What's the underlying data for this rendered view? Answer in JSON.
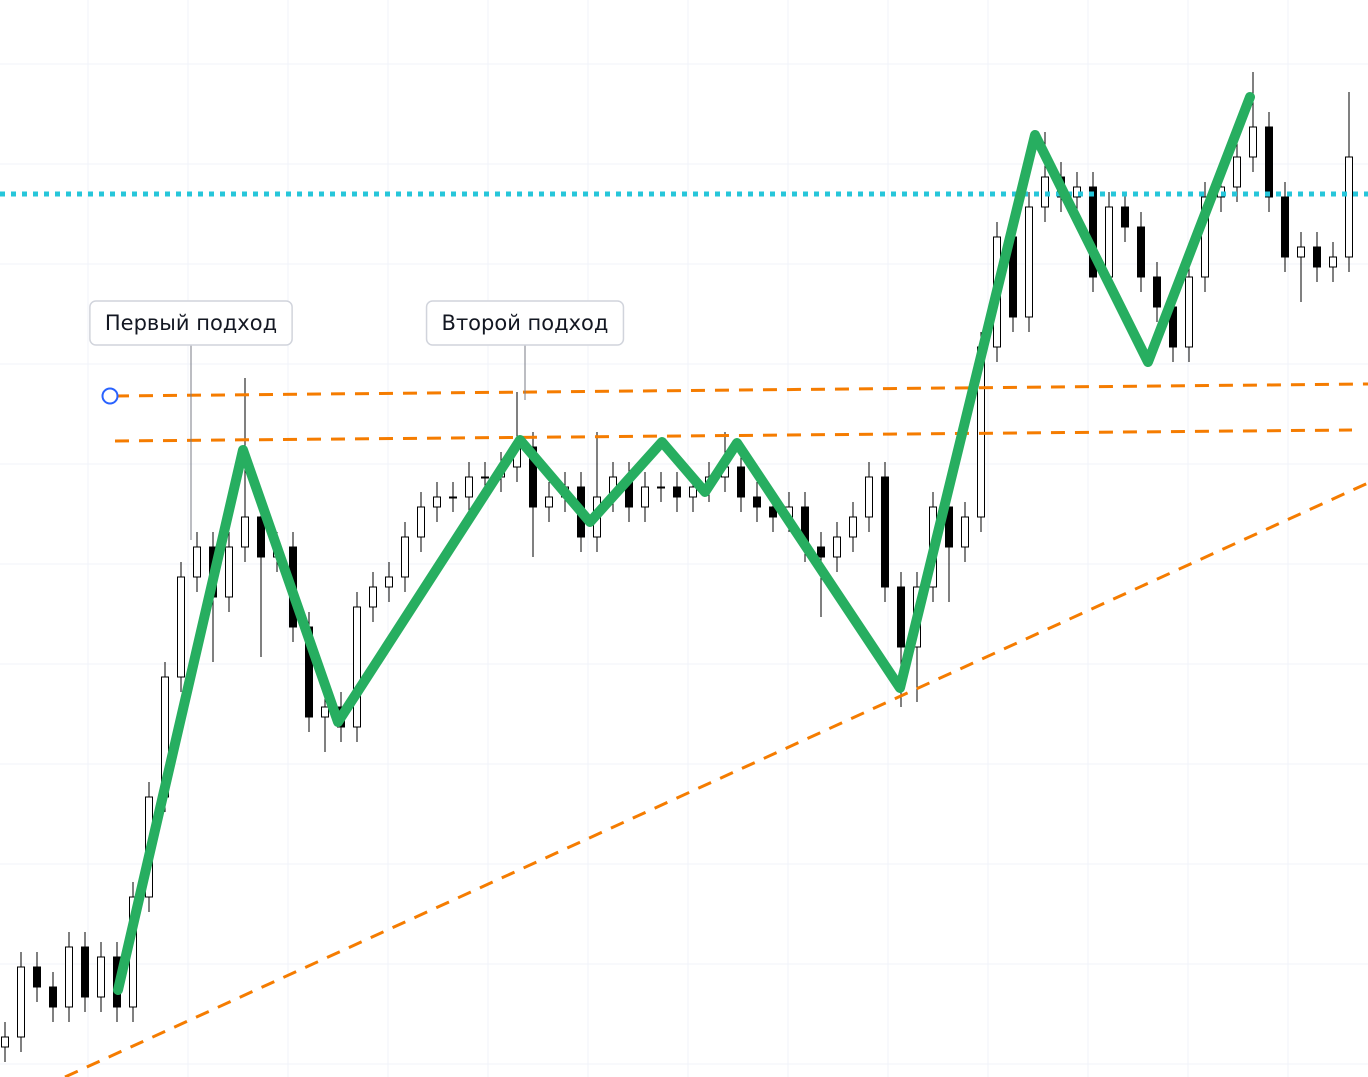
{
  "chart_data": {
    "type": "candlestick",
    "xlim": [
      0,
      136.8
    ],
    "ylim": [
      0,
      107.7
    ],
    "grid": true,
    "xticks": [
      8.8,
      18.8,
      28.8,
      38.8,
      48.8,
      58.8,
      68.8,
      78.8,
      88.8,
      98.8,
      108.8,
      118.8,
      128.8
    ],
    "yticks": [
      1.3,
      11.3,
      21.3,
      31.3,
      41.3,
      51.3,
      61.3,
      71.3,
      81.3,
      91.3,
      101.3
    ],
    "up_color": "#ffffff",
    "down_color": "#000000",
    "x": [
      0.5,
      2.1,
      3.7,
      5.3,
      6.9,
      8.5,
      10.1,
      11.7,
      13.3,
      14.9,
      16.5,
      18.1,
      19.7,
      21.3,
      22.9,
      24.5,
      26.1,
      27.7,
      29.3,
      30.9,
      32.5,
      34.1,
      35.7,
      37.3,
      38.9,
      40.5,
      42.1,
      43.7,
      45.3,
      46.9,
      48.5,
      50.1,
      51.7,
      53.3,
      54.9,
      56.5,
      58.1,
      59.7,
      61.3,
      62.9,
      64.5,
      66.1,
      67.7,
      69.3,
      70.9,
      72.5,
      74.1,
      75.7,
      77.3,
      78.9,
      80.5,
      82.1,
      83.7,
      85.3,
      86.9,
      88.5,
      90.1,
      91.7,
      93.3,
      94.9,
      96.5,
      98.1,
      99.7,
      101.3,
      102.9,
      104.5,
      106.1,
      107.7,
      109.3,
      110.9,
      112.5,
      114.1,
      115.7,
      117.3,
      118.9,
      120.5,
      122.1,
      123.7,
      125.3,
      126.9,
      128.5,
      130.1,
      131.7,
      133.3,
      134.9
    ],
    "open": [
      3,
      4,
      11,
      9,
      7,
      13,
      8,
      12,
      7,
      18,
      28,
      40,
      50,
      53,
      48,
      53,
      56,
      52,
      53,
      45,
      36,
      37,
      35,
      47,
      49,
      50,
      54,
      57,
      58,
      58,
      60,
      60,
      61,
      63,
      57,
      58,
      59,
      54,
      58,
      60,
      57,
      59,
      59,
      58,
      59,
      60,
      61,
      58,
      57,
      56,
      57,
      53,
      52,
      54,
      56,
      60,
      49,
      43,
      49,
      57,
      53,
      56,
      73,
      84,
      76,
      87,
      90,
      88,
      89,
      80,
      87,
      85,
      80,
      77,
      73,
      80,
      88,
      89,
      92,
      95,
      88,
      82,
      83,
      81,
      82
    ],
    "high": [
      5.5,
      12.5,
      12.5,
      10.5,
      14.5,
      14.5,
      13.5,
      13.5,
      19.5,
      29.5,
      41.5,
      51.5,
      54.5,
      54.5,
      54.5,
      69.9,
      57.5,
      54.5,
      54.5,
      46.5,
      38.5,
      38.5,
      48.5,
      50.5,
      51.5,
      55.5,
      58.5,
      59.5,
      59.5,
      61.5,
      61.5,
      62.5,
      68.5,
      64.5,
      59.5,
      60.5,
      60.5,
      64.5,
      61.5,
      61.5,
      60.5,
      60.5,
      60.5,
      60.5,
      61.5,
      64.5,
      62.5,
      59.5,
      58.5,
      58.5,
      58.5,
      54.5,
      55.5,
      57.5,
      61.5,
      61.5,
      50.5,
      50.5,
      58.5,
      58.5,
      57.5,
      74.5,
      85.5,
      85.5,
      88.5,
      94.5,
      91.5,
      90.5,
      90.5,
      88.5,
      88.5,
      86.5,
      81.5,
      78.5,
      81.5,
      89.5,
      90.5,
      93.5,
      100.5,
      96.5,
      89.5,
      84.5,
      84.5,
      83.5,
      98.5
    ],
    "low": [
      1.5,
      2.5,
      7.5,
      5.5,
      5.5,
      6.5,
      6.5,
      5.5,
      5.5,
      16.5,
      26.5,
      38.5,
      48.5,
      41.5,
      46.5,
      51.5,
      42,
      50.5,
      43.5,
      34.5,
      32.5,
      33.5,
      33.5,
      45.5,
      47.5,
      48.5,
      52.5,
      55.5,
      56.5,
      56.5,
      58.5,
      58.5,
      59.5,
      52,
      55.5,
      56.5,
      52.5,
      52.5,
      56.5,
      55.5,
      55.5,
      57.5,
      56.5,
      56.5,
      57.5,
      58.5,
      56.5,
      55.5,
      54.5,
      54.5,
      51.5,
      46,
      50.5,
      52.5,
      54.5,
      47.5,
      37,
      37.5,
      47.5,
      47.5,
      51.5,
      54.5,
      71.5,
      74.5,
      74.5,
      85.5,
      86.5,
      86.5,
      78.5,
      78.5,
      83.5,
      78.5,
      75.5,
      71.5,
      71.5,
      78.5,
      86.5,
      87.5,
      90.5,
      86.5,
      80.5,
      77.5,
      79.5,
      79.5,
      80.5
    ],
    "close": [
      4,
      11,
      9,
      7,
      13,
      8,
      12,
      7,
      18,
      28,
      40,
      50,
      53,
      48,
      53,
      56,
      52,
      53,
      45,
      36,
      37,
      35,
      47,
      49,
      50,
      54,
      57,
      58,
      58,
      60,
      60,
      61,
      63,
      57,
      58,
      59,
      54,
      58,
      60,
      57,
      59,
      59,
      58,
      59,
      60,
      61,
      58,
      57,
      56,
      57,
      53,
      52,
      54,
      56,
      60,
      49,
      43,
      49,
      57,
      53,
      56,
      73,
      84,
      76,
      87,
      90,
      88,
      89,
      80,
      87,
      85,
      80,
      77,
      73,
      80,
      88,
      89,
      92,
      95,
      88,
      82,
      83,
      81,
      82,
      92
    ],
    "zigzag": {
      "color": "#27ae60",
      "x": [
        11.8,
        24.3,
        33.8,
        52,
        59,
        66.2,
        70.5,
        73.7,
        90,
        103.5,
        114.8,
        125
      ],
      "values": [
        8.7,
        62.7,
        35.5,
        63.7,
        55.5,
        63.5,
        58.5,
        63.4,
        38.9,
        94.2,
        71.5,
        98
      ]
    },
    "level_line": {
      "color": "#26c6da",
      "value": 88.3
    },
    "dashed_lines": {
      "color": "#f57c00",
      "lines": [
        {
          "x": [
            11.5,
            136.8
          ],
          "values": [
            68.1,
            69.3
          ]
        },
        {
          "x": [
            11.5,
            135.2
          ],
          "values": [
            63.6,
            64.7
          ]
        },
        {
          "x": [
            6.5,
            136.8
          ],
          "values": [
            0,
            59.4
          ]
        }
      ]
    },
    "annotations": [
      {
        "text": "Первый подход",
        "x": 19.1,
        "y": 53.7
      },
      {
        "text": "Второй подход",
        "x": 52.5,
        "y": 67.7
      }
    ]
  }
}
